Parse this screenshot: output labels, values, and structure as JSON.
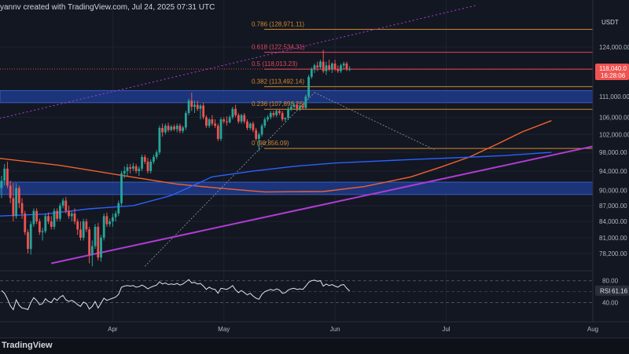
{
  "header": {
    "title": "yannv created with TradingView.com, Jul 24, 2025 07:31 UTC"
  },
  "footer": {
    "brand": "TradingView"
  },
  "colors": {
    "background": "#131722",
    "grid": "#1f2330",
    "up": "#26a69a",
    "down": "#ef5350",
    "ma_orange": "#f2622d",
    "ma_blue": "#2962ff",
    "trend": "#b03cd3",
    "zone": "#1e3a8a",
    "fib_orange": "#d08a2e",
    "fib_red": "#b22847",
    "rsi": "#e0e3eb"
  },
  "chart_data": {
    "type": "candlestick",
    "symbol_currency": "USDT",
    "y_scale": "log",
    "ylim": [
      75500,
      132500
    ],
    "price_ticks": [
      "124,000.00",
      "111,000.00",
      "106,000.00",
      "102,000.00",
      "98,000.00",
      "94,000.00",
      "90,000.00",
      "87,000.00",
      "84,000.00",
      "81,000.00",
      "78,200.00"
    ],
    "x_ticks": [
      "Apr",
      "May",
      "Jun",
      "Jul",
      "Aug"
    ],
    "last_price": {
      "value": "118,040.0",
      "countdown": "16:28:06",
      "level": 118040
    },
    "fib_levels": [
      {
        "label": "0.786 (128,971.11)",
        "price": 128971,
        "color": "#d08a2e"
      },
      {
        "label": "0.618 (122,534.31)",
        "price": 122534,
        "color": "#e5455c"
      },
      {
        "label": "0.5 (118,013.23)",
        "price": 118013,
        "color": "#e5455c"
      },
      {
        "label": "0.382 (113,492.14)",
        "price": 113492,
        "color": "#d08a2e"
      },
      {
        "label": "0.236 (107,898.26)",
        "price": 107898,
        "color": "#d08a2e"
      },
      {
        "label": "0 (98,856.09)",
        "price": 98856,
        "color": "#d08a2e"
      }
    ],
    "zones": [
      {
        "from": 109500,
        "to": 112500
      },
      {
        "from": 89200,
        "to": 91700
      }
    ],
    "trendlines": [
      {
        "name": "rising support",
        "points": [
          [
            17,
            76500
          ],
          [
            214,
            101000
          ]
        ],
        "color": "#b03cd3",
        "style": "solid"
      },
      {
        "name": "upper channel",
        "points": [
          [
            -2,
            105500
          ],
          [
            162,
            136000
          ]
        ],
        "color": "#b03cd3",
        "style": "dotted"
      }
    ],
    "moving_averages": [
      {
        "color": "#f2622d",
        "points": [
          [
            -2,
            96800
          ],
          [
            20,
            95200
          ],
          [
            40,
            93200
          ],
          [
            60,
            91300
          ],
          [
            74,
            90500
          ],
          [
            90,
            89700
          ],
          [
            110,
            89800
          ],
          [
            124,
            90800
          ],
          [
            140,
            92800
          ],
          [
            150,
            94800
          ],
          [
            160,
            97000
          ],
          [
            170,
            100000
          ],
          [
            178,
            102600
          ],
          [
            188,
            105200
          ]
        ]
      },
      {
        "color": "#2962ff",
        "points": [
          [
            -2,
            85000
          ],
          [
            15,
            85400
          ],
          [
            30,
            86400
          ],
          [
            45,
            87000
          ],
          [
            58,
            89000
          ],
          [
            72,
            92800
          ],
          [
            86,
            94000
          ],
          [
            100,
            95000
          ],
          [
            114,
            95700
          ],
          [
            128,
            96100
          ],
          [
            142,
            96500
          ],
          [
            158,
            96900
          ],
          [
            172,
            97300
          ],
          [
            188,
            98000
          ]
        ]
      }
    ],
    "candles": [
      {
        "i": 0,
        "o": 90500,
        "h": 93000,
        "l": 88500,
        "c": 92000
      },
      {
        "i": 1,
        "o": 92000,
        "h": 95500,
        "l": 91000,
        "c": 94500
      },
      {
        "i": 2,
        "o": 94500,
        "h": 96000,
        "l": 90500,
        "c": 91000
      },
      {
        "i": 3,
        "o": 91000,
        "h": 92000,
        "l": 87500,
        "c": 88500
      },
      {
        "i": 4,
        "o": 88500,
        "h": 91500,
        "l": 84000,
        "c": 85000
      },
      {
        "i": 5,
        "o": 85000,
        "h": 91500,
        "l": 84500,
        "c": 90500
      },
      {
        "i": 6,
        "o": 90500,
        "h": 91000,
        "l": 86500,
        "c": 87500
      },
      {
        "i": 7,
        "o": 87500,
        "h": 88500,
        "l": 84500,
        "c": 85500
      },
      {
        "i": 8,
        "o": 85500,
        "h": 86000,
        "l": 81500,
        "c": 82000
      },
      {
        "i": 9,
        "o": 82000,
        "h": 82500,
        "l": 78200,
        "c": 79000
      },
      {
        "i": 10,
        "o": 79000,
        "h": 84000,
        "l": 78000,
        "c": 83500
      },
      {
        "i": 11,
        "o": 83500,
        "h": 86500,
        "l": 83000,
        "c": 86000
      },
      {
        "i": 12,
        "o": 86000,
        "h": 86500,
        "l": 83500,
        "c": 84000
      },
      {
        "i": 13,
        "o": 84000,
        "h": 84500,
        "l": 81500,
        "c": 82000
      },
      {
        "i": 14,
        "o": 82000,
        "h": 82800,
        "l": 80500,
        "c": 82200
      },
      {
        "i": 15,
        "o": 82200,
        "h": 85500,
        "l": 81800,
        "c": 85000
      },
      {
        "i": 16,
        "o": 85000,
        "h": 85700,
        "l": 83500,
        "c": 84000
      },
      {
        "i": 17,
        "o": 84000,
        "h": 85000,
        "l": 82500,
        "c": 83000
      },
      {
        "i": 18,
        "o": 83000,
        "h": 86500,
        "l": 82500,
        "c": 86000
      },
      {
        "i": 19,
        "o": 86000,
        "h": 86500,
        "l": 84000,
        "c": 84500
      },
      {
        "i": 20,
        "o": 84500,
        "h": 87500,
        "l": 84000,
        "c": 87000
      },
      {
        "i": 21,
        "o": 87000,
        "h": 88500,
        "l": 86500,
        "c": 88000
      },
      {
        "i": 22,
        "o": 88000,
        "h": 88700,
        "l": 85500,
        "c": 86000
      },
      {
        "i": 23,
        "o": 86000,
        "h": 87000,
        "l": 84500,
        "c": 85000
      },
      {
        "i": 24,
        "o": 85000,
        "h": 86000,
        "l": 84000,
        "c": 85500
      },
      {
        "i": 25,
        "o": 85500,
        "h": 86500,
        "l": 83500,
        "c": 84000
      },
      {
        "i": 26,
        "o": 84000,
        "h": 84500,
        "l": 81500,
        "c": 82500
      },
      {
        "i": 27,
        "o": 82500,
        "h": 84000,
        "l": 80500,
        "c": 81000
      },
      {
        "i": 28,
        "o": 81000,
        "h": 84500,
        "l": 80500,
        "c": 84000
      },
      {
        "i": 29,
        "o": 84000,
        "h": 84500,
        "l": 82000,
        "c": 82500
      },
      {
        "i": 30,
        "o": 82500,
        "h": 83000,
        "l": 76500,
        "c": 78000
      },
      {
        "i": 31,
        "o": 78000,
        "h": 80500,
        "l": 76000,
        "c": 79500
      },
      {
        "i": 32,
        "o": 79500,
        "h": 83500,
        "l": 79000,
        "c": 83000
      },
      {
        "i": 33,
        "o": 83000,
        "h": 83700,
        "l": 77000,
        "c": 77500
      },
      {
        "i": 34,
        "o": 77500,
        "h": 81500,
        "l": 76800,
        "c": 81000
      },
      {
        "i": 35,
        "o": 81000,
        "h": 85500,
        "l": 80500,
        "c": 85000
      },
      {
        "i": 36,
        "o": 85000,
        "h": 85700,
        "l": 83000,
        "c": 83500
      },
      {
        "i": 37,
        "o": 83500,
        "h": 84500,
        "l": 83000,
        "c": 84000
      },
      {
        "i": 38,
        "o": 84000,
        "h": 85500,
        "l": 83000,
        "c": 84800
      },
      {
        "i": 39,
        "o": 84800,
        "h": 86000,
        "l": 84000,
        "c": 85500
      },
      {
        "i": 40,
        "o": 85500,
        "h": 88000,
        "l": 85000,
        "c": 87500
      },
      {
        "i": 41,
        "o": 87500,
        "h": 94000,
        "l": 87000,
        "c": 93500
      },
      {
        "i": 42,
        "o": 93500,
        "h": 95000,
        "l": 92500,
        "c": 94000
      },
      {
        "i": 43,
        "o": 94000,
        "h": 95500,
        "l": 93000,
        "c": 94800
      },
      {
        "i": 44,
        "o": 94800,
        "h": 95500,
        "l": 93500,
        "c": 94500
      },
      {
        "i": 45,
        "o": 94500,
        "h": 95700,
        "l": 94000,
        "c": 95000
      },
      {
        "i": 46,
        "o": 95000,
        "h": 95500,
        "l": 93500,
        "c": 94000
      },
      {
        "i": 47,
        "o": 94000,
        "h": 95000,
        "l": 93000,
        "c": 94500
      },
      {
        "i": 48,
        "o": 94500,
        "h": 97500,
        "l": 94000,
        "c": 97000
      },
      {
        "i": 49,
        "o": 97000,
        "h": 97500,
        "l": 95500,
        "c": 96000
      },
      {
        "i": 50,
        "o": 96000,
        "h": 96800,
        "l": 93500,
        "c": 94000
      },
      {
        "i": 51,
        "o": 94000,
        "h": 96500,
        "l": 93500,
        "c": 96000
      },
      {
        "i": 52,
        "o": 96000,
        "h": 97500,
        "l": 95500,
        "c": 97000
      },
      {
        "i": 53,
        "o": 97000,
        "h": 98500,
        "l": 96500,
        "c": 98000
      },
      {
        "i": 54,
        "o": 98000,
        "h": 104000,
        "l": 97500,
        "c": 103500
      },
      {
        "i": 55,
        "o": 103500,
        "h": 104500,
        "l": 101500,
        "c": 102500
      },
      {
        "i": 56,
        "o": 102500,
        "h": 104500,
        "l": 102000,
        "c": 104000
      },
      {
        "i": 57,
        "o": 104000,
        "h": 104700,
        "l": 102500,
        "c": 103000
      },
      {
        "i": 58,
        "o": 103000,
        "h": 104200,
        "l": 102700,
        "c": 103800
      },
      {
        "i": 59,
        "o": 103800,
        "h": 104300,
        "l": 102800,
        "c": 103200
      },
      {
        "i": 60,
        "o": 103200,
        "h": 104500,
        "l": 102500,
        "c": 104000
      },
      {
        "i": 61,
        "o": 104000,
        "h": 104500,
        "l": 102300,
        "c": 102800
      },
      {
        "i": 62,
        "o": 102800,
        "h": 104000,
        "l": 102300,
        "c": 103600
      },
      {
        "i": 63,
        "o": 103600,
        "h": 107500,
        "l": 103000,
        "c": 107000
      },
      {
        "i": 64,
        "o": 107000,
        "h": 110500,
        "l": 106500,
        "c": 110000
      },
      {
        "i": 65,
        "o": 110000,
        "h": 112000,
        "l": 107500,
        "c": 108500
      },
      {
        "i": 66,
        "o": 108500,
        "h": 110000,
        "l": 107000,
        "c": 109000
      },
      {
        "i": 67,
        "o": 109000,
        "h": 110000,
        "l": 107500,
        "c": 108000
      },
      {
        "i": 68,
        "o": 108000,
        "h": 109200,
        "l": 105500,
        "c": 108800
      },
      {
        "i": 69,
        "o": 108800,
        "h": 109500,
        "l": 105500,
        "c": 106000
      },
      {
        "i": 70,
        "o": 106000,
        "h": 106500,
        "l": 103500,
        "c": 104000
      },
      {
        "i": 71,
        "o": 104000,
        "h": 105800,
        "l": 103500,
        "c": 105500
      },
      {
        "i": 72,
        "o": 105500,
        "h": 106500,
        "l": 104000,
        "c": 104500
      },
      {
        "i": 73,
        "o": 104500,
        "h": 105500,
        "l": 103500,
        "c": 104000
      },
      {
        "i": 74,
        "o": 104000,
        "h": 104500,
        "l": 100500,
        "c": 101000
      },
      {
        "i": 75,
        "o": 101000,
        "h": 106000,
        "l": 100500,
        "c": 105500
      },
      {
        "i": 76,
        "o": 105500,
        "h": 106000,
        "l": 104500,
        "c": 105000
      },
      {
        "i": 77,
        "o": 105000,
        "h": 106200,
        "l": 104000,
        "c": 104800
      },
      {
        "i": 78,
        "o": 104800,
        "h": 106500,
        "l": 104500,
        "c": 106000
      },
      {
        "i": 79,
        "o": 106000,
        "h": 108500,
        "l": 105500,
        "c": 108000
      },
      {
        "i": 80,
        "o": 108000,
        "h": 109000,
        "l": 106000,
        "c": 106500
      },
      {
        "i": 81,
        "o": 106500,
        "h": 107000,
        "l": 104500,
        "c": 105000
      },
      {
        "i": 82,
        "o": 105000,
        "h": 106800,
        "l": 104500,
        "c": 106500
      },
      {
        "i": 83,
        "o": 106500,
        "h": 107000,
        "l": 104500,
        "c": 105000
      },
      {
        "i": 84,
        "o": 105000,
        "h": 105500,
        "l": 103000,
        "c": 103500
      },
      {
        "i": 85,
        "o": 103500,
        "h": 104800,
        "l": 103000,
        "c": 104500
      },
      {
        "i": 86,
        "o": 104500,
        "h": 105000,
        "l": 102500,
        "c": 103000
      },
      {
        "i": 87,
        "o": 103000,
        "h": 103500,
        "l": 100500,
        "c": 101000
      },
      {
        "i": 88,
        "o": 101000,
        "h": 102500,
        "l": 98300,
        "c": 102000
      },
      {
        "i": 89,
        "o": 102000,
        "h": 104500,
        "l": 101500,
        "c": 104000
      },
      {
        "i": 90,
        "o": 104000,
        "h": 106000,
        "l": 103500,
        "c": 105500
      },
      {
        "i": 91,
        "o": 105500,
        "h": 106500,
        "l": 105000,
        "c": 106000
      },
      {
        "i": 92,
        "o": 106000,
        "h": 107500,
        "l": 105500,
        "c": 107000
      },
      {
        "i": 93,
        "o": 107000,
        "h": 107500,
        "l": 106000,
        "c": 106500
      },
      {
        "i": 94,
        "o": 106500,
        "h": 108000,
        "l": 106000,
        "c": 107500
      },
      {
        "i": 95,
        "o": 107500,
        "h": 108000,
        "l": 106500,
        "c": 107000
      },
      {
        "i": 96,
        "o": 107000,
        "h": 107500,
        "l": 105000,
        "c": 105500
      },
      {
        "i": 97,
        "o": 105500,
        "h": 106000,
        "l": 105000,
        "c": 105800
      },
      {
        "i": 98,
        "o": 105800,
        "h": 108500,
        "l": 105500,
        "c": 108000
      },
      {
        "i": 99,
        "o": 108000,
        "h": 109000,
        "l": 107500,
        "c": 108500
      },
      {
        "i": 100,
        "o": 108500,
        "h": 109500,
        "l": 107800,
        "c": 109000
      },
      {
        "i": 101,
        "o": 109000,
        "h": 109500,
        "l": 107500,
        "c": 108000
      },
      {
        "i": 102,
        "o": 108000,
        "h": 109000,
        "l": 107500,
        "c": 108700
      },
      {
        "i": 103,
        "o": 108700,
        "h": 109200,
        "l": 107800,
        "c": 108200
      },
      {
        "i": 104,
        "o": 108200,
        "h": 111500,
        "l": 108000,
        "c": 111000
      },
      {
        "i": 105,
        "o": 111000,
        "h": 116500,
        "l": 110500,
        "c": 116000
      },
      {
        "i": 106,
        "o": 116000,
        "h": 118500,
        "l": 115500,
        "c": 118000
      },
      {
        "i": 107,
        "o": 118000,
        "h": 119500,
        "l": 117000,
        "c": 119000
      },
      {
        "i": 108,
        "o": 119000,
        "h": 120000,
        "l": 117500,
        "c": 118500
      },
      {
        "i": 109,
        "o": 118500,
        "h": 120500,
        "l": 118000,
        "c": 120000
      },
      {
        "i": 110,
        "o": 120000,
        "h": 123200,
        "l": 117000,
        "c": 117500
      },
      {
        "i": 111,
        "o": 117500,
        "h": 120000,
        "l": 116500,
        "c": 119000
      },
      {
        "i": 112,
        "o": 119000,
        "h": 120500,
        "l": 117500,
        "c": 118000
      },
      {
        "i": 113,
        "o": 118000,
        "h": 119800,
        "l": 117000,
        "c": 119500
      },
      {
        "i": 114,
        "o": 119500,
        "h": 120500,
        "l": 117500,
        "c": 118000
      },
      {
        "i": 115,
        "o": 118000,
        "h": 119000,
        "l": 117000,
        "c": 117500
      },
      {
        "i": 116,
        "o": 117500,
        "h": 119500,
        "l": 117000,
        "c": 119000
      },
      {
        "i": 117,
        "o": 119000,
        "h": 120000,
        "l": 118000,
        "c": 119500
      },
      {
        "i": 118,
        "o": 119500,
        "h": 120000,
        "l": 117500,
        "c": 118000
      },
      {
        "i": 119,
        "o": 118000,
        "h": 118800,
        "l": 117500,
        "c": 118040
      }
    ],
    "rsi": {
      "label": "RSI",
      "value": "61.16",
      "ticks": [
        "80.00",
        "40.00"
      ],
      "range": [
        22,
        88
      ],
      "values": [
        62,
        57,
        47,
        34,
        27,
        45,
        35,
        30,
        29,
        27,
        40,
        49,
        44,
        36,
        38,
        47,
        42,
        40,
        48,
        44,
        50,
        53,
        45,
        42,
        44,
        41,
        36,
        33,
        41,
        38,
        28,
        33,
        42,
        30,
        39,
        48,
        44,
        46,
        48,
        50,
        55,
        68,
        70,
        71,
        70,
        71,
        68,
        69,
        72,
        69,
        65,
        68,
        70,
        72,
        78,
        74,
        76,
        73,
        74,
        73,
        75,
        72,
        74,
        78,
        82,
        76,
        77,
        74,
        75,
        70,
        64,
        68,
        65,
        64,
        57,
        66,
        65,
        64,
        67,
        71,
        63,
        58,
        62,
        58,
        54,
        57,
        52,
        48,
        46,
        55,
        60,
        62,
        64,
        62,
        65,
        63,
        57,
        58,
        63,
        65,
        66,
        64,
        65,
        64,
        70,
        77,
        80,
        81,
        79,
        80,
        70,
        74,
        71,
        73,
        70,
        68,
        72,
        73,
        66,
        61
      ]
    }
  }
}
